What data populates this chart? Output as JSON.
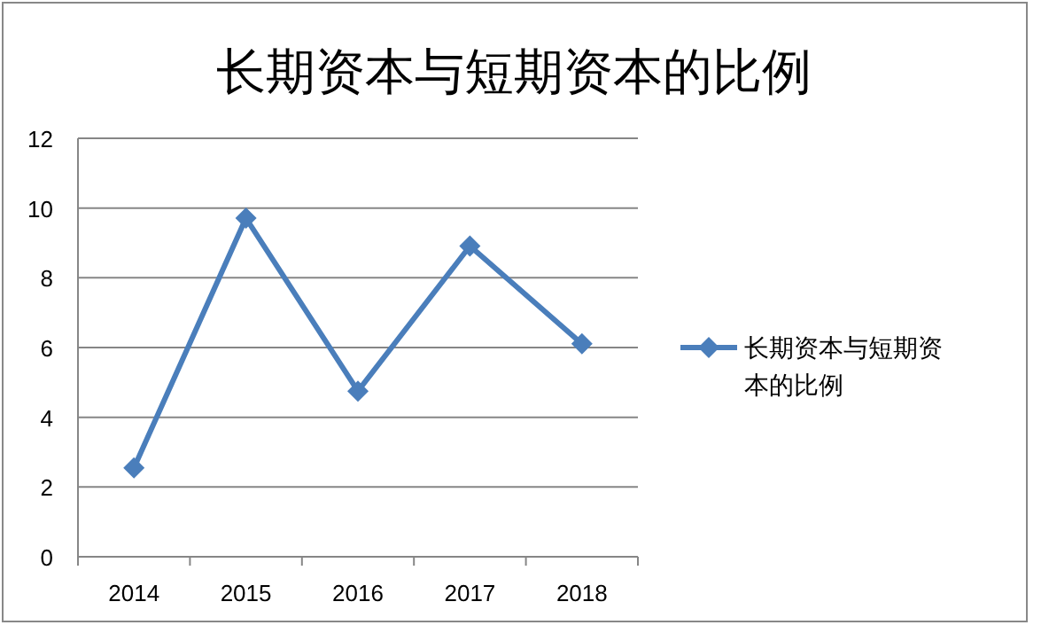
{
  "chart_data": {
    "type": "line",
    "title": "长期资本与短期资本的比例",
    "categories": [
      "2014",
      "2015",
      "2016",
      "2017",
      "2018"
    ],
    "series": [
      {
        "name": "长期资本与短期资本的比例",
        "color": "#4a7ebb",
        "values": [
          2.55,
          9.71,
          4.75,
          8.91,
          6.11
        ]
      }
    ],
    "ylim": [
      0,
      12
    ],
    "yticks": [
      0,
      2,
      4,
      6,
      8,
      10,
      12
    ],
    "grid": "y",
    "legend": "right",
    "marker": "diamond",
    "line_style": "solid"
  }
}
